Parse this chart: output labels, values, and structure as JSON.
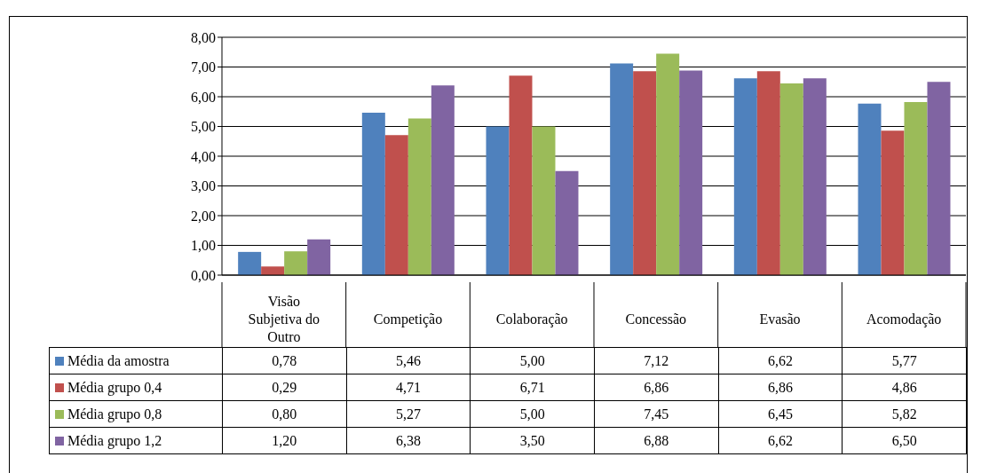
{
  "chart_data": {
    "type": "bar",
    "categories": [
      "Visão Subjetiva do Outro",
      "Competição",
      "Colaboração",
      "Concessão",
      "Evasão",
      "Acomodação"
    ],
    "series": [
      {
        "name": "Média da amostra",
        "color": "#4f81bd",
        "values": [
          0.78,
          5.46,
          5.0,
          7.12,
          6.62,
          5.77
        ],
        "value_labels": [
          "0,78",
          "5,46",
          "5,00",
          "7,12",
          "6,62",
          "5,77"
        ]
      },
      {
        "name": "Média grupo 0,4",
        "color": "#c0504d",
        "values": [
          0.29,
          4.71,
          6.71,
          6.86,
          6.86,
          4.86
        ],
        "value_labels": [
          "0,29",
          "4,71",
          "6,71",
          "6,86",
          "6,86",
          "4,86"
        ]
      },
      {
        "name": "Média grupo 0,8",
        "color": "#9bbb59",
        "values": [
          0.8,
          5.27,
          5.0,
          7.45,
          6.45,
          5.82
        ],
        "value_labels": [
          "0,80",
          "5,27",
          "5,00",
          "7,45",
          "6,45",
          "5,82"
        ]
      },
      {
        "name": "Média grupo 1,2",
        "color": "#8064a2",
        "values": [
          1.2,
          6.38,
          3.5,
          6.88,
          6.62,
          6.5
        ],
        "value_labels": [
          "1,20",
          "6,38",
          "3,50",
          "6,88",
          "6,62",
          "6,50"
        ]
      }
    ],
    "ylim": [
      0,
      8
    ],
    "yticks": [
      {
        "value": 0,
        "label": "0,00"
      },
      {
        "value": 1,
        "label": "1,00"
      },
      {
        "value": 2,
        "label": "2,00"
      },
      {
        "value": 3,
        "label": "3,00"
      },
      {
        "value": 4,
        "label": "4,00"
      },
      {
        "value": 5,
        "label": "5,00"
      },
      {
        "value": 6,
        "label": "6,00"
      },
      {
        "value": 7,
        "label": "7,00"
      },
      {
        "value": 8,
        "label": "8,00"
      }
    ],
    "grid": "y",
    "legend": "bottom"
  }
}
